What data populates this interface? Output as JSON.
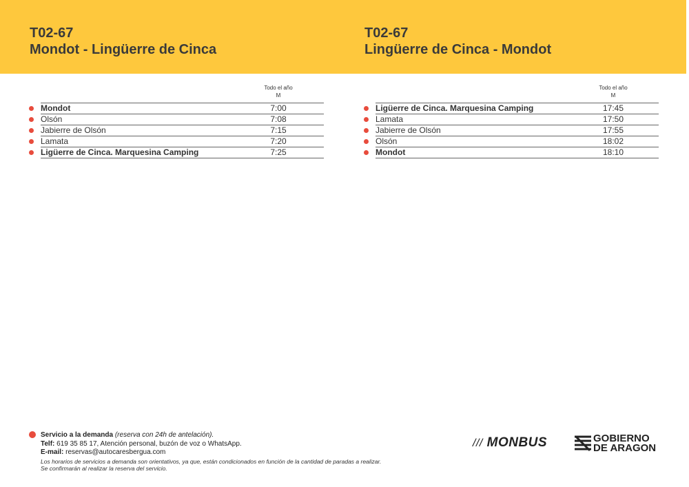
{
  "header": [
    {
      "code": "T02-67",
      "route": "Mondot - Lingüerre de Cinca"
    },
    {
      "code": "T02-67",
      "route": "Lingüerre de Cinca - Mondot"
    }
  ],
  "timetables": [
    {
      "column_header": "Todo el año",
      "service": "M",
      "rows": [
        {
          "stop": "Mondot",
          "time": "7:00",
          "bold": true
        },
        {
          "stop": "Olsón",
          "time": "7:08",
          "bold": false
        },
        {
          "stop": "Jabierre de Olsón",
          "time": "7:15",
          "bold": false
        },
        {
          "stop": "Lamata",
          "time": "7:20",
          "bold": false
        },
        {
          "stop": "Ligüerre de Cinca. Marquesina Camping",
          "time": "7:25",
          "bold": true
        }
      ]
    },
    {
      "column_header": "Todo el año",
      "service": "M",
      "rows": [
        {
          "stop": "Ligüerre de Cinca. Marquesina Camping",
          "time": "17:45",
          "bold": true
        },
        {
          "stop": "Lamata",
          "time": "17:50",
          "bold": false
        },
        {
          "stop": "Jabierre de Olsón",
          "time": "17:55",
          "bold": false
        },
        {
          "stop": "Olsón",
          "time": "18:02",
          "bold": false
        },
        {
          "stop": "Mondot",
          "time": "18:10",
          "bold": true
        }
      ]
    }
  ],
  "footer": {
    "demand_label": "Servicio a la demanda",
    "demand_note": "(reserva con 24h de antelación).",
    "phone_label": "Telf:",
    "phone_text": "619 35 85 17, Atención personal, buzón de voz o WhatsApp.",
    "email_label": "E-mail:",
    "email_text": "reservas@autocaresbergua.com",
    "disclaimer": [
      "Los horarios de servicios a demanda son orientativos, ya que, están condicionados en función de la cantidad de paradas a realizar.",
      "Se confirmarán al realizar la reserva del servicio."
    ]
  },
  "logos": {
    "monbus": "MONBUS",
    "gobierno": [
      "GOBIERNO",
      "DE ARAGON"
    ]
  }
}
